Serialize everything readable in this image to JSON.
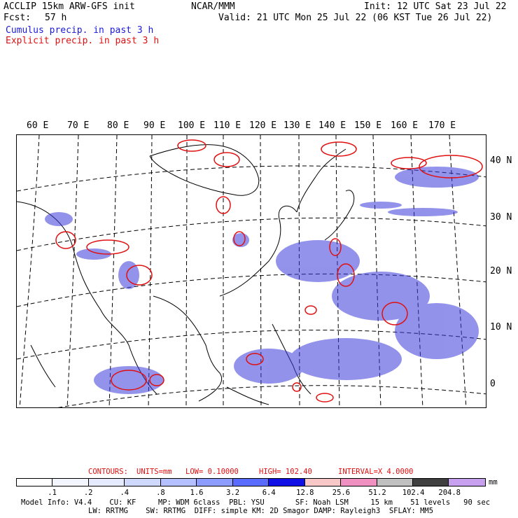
{
  "header": {
    "model_line": "ACCLIP 15km ARW-GFS init",
    "fcst_label": "Fcst:",
    "fcst_value": "57 h",
    "center": "NCAR/MMM",
    "init": "Init: 12 UTC Sat 23 Jul 22",
    "valid": "Valid: 21 UTC Mon 25 Jul 22 (06 KST Tue 26 Jul 22)",
    "legend_cumulus": "Cumulus precip. in past 3 h",
    "legend_explicit": "Explicit precip. in past 3 h"
  },
  "map": {
    "lon_labels": [
      "60 E",
      "70 E",
      "80 E",
      "90 E",
      "100 E",
      "110 E",
      "120 E",
      "130 E",
      "140 E",
      "150 E",
      "160 E",
      "170 E"
    ],
    "lat_labels": [
      "40 N",
      "30 N",
      "20 N",
      "10 N",
      "0"
    ],
    "colors": {
      "cumulus": "#1a1adc",
      "explicit": "#e01010",
      "coast": "#000000"
    }
  },
  "contours": {
    "contours_label": "CONTOURS:",
    "units": "UNITS=mm",
    "low": "LOW= 0.10000",
    "high": "HIGH= 102.40",
    "interval": "INTERVAL=X 4.0000"
  },
  "colorbar": {
    "unit": "mm",
    "tick_labels": [
      ".1",
      ".2",
      ".4",
      ".8",
      "1.6",
      "3.2",
      "6.4",
      "12.8",
      "25.6",
      "51.2",
      "102.4",
      "204.8"
    ],
    "colors": [
      "#ffffff",
      "#f4f6ff",
      "#e6ebff",
      "#cfd8ff",
      "#b4c0ff",
      "#8c9cff",
      "#5a6cff",
      "#1010e6",
      "#f8c8c8",
      "#f090c0",
      "#c0c0c0",
      "#404040",
      "#c8a0f0"
    ]
  },
  "footer": {
    "line1": "Model Info: V4.4    CU: KF     MP: WDM 6class  PBL: YSU       SF: Noah LSM     15 km    51 levels   90 sec",
    "line2": "LW: RRTMG    SW: RRTMG  DIFF: simple KM: 2D Smagor DAMP: Rayleigh3  SFLAY: MM5"
  }
}
